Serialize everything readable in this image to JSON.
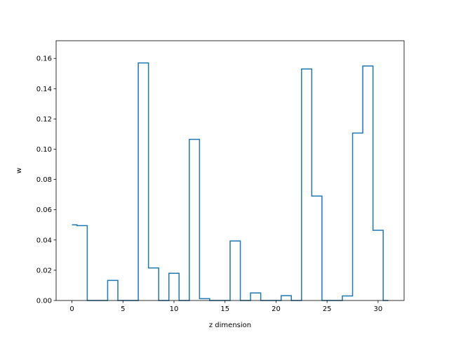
{
  "chart_data": {
    "type": "line",
    "drawstyle": "steps-mid",
    "title": "",
    "xlabel": "z dimension",
    "ylabel": "w",
    "xlim": [
      -1.55,
      32.55
    ],
    "ylim": [
      0,
      0.1717
    ],
    "xticks": [
      0,
      5,
      10,
      15,
      20,
      25,
      30
    ],
    "xtick_labels": [
      "0",
      "5",
      "10",
      "15",
      "20",
      "25",
      "30"
    ],
    "yticks": [
      0.0,
      0.02,
      0.04,
      0.06,
      0.08,
      0.1,
      0.12,
      0.14,
      0.16
    ],
    "ytick_labels": [
      "0.00",
      "0.02",
      "0.04",
      "0.06",
      "0.08",
      "0.10",
      "0.12",
      "0.14",
      "0.16"
    ],
    "grid": false,
    "legend": false,
    "series": [
      {
        "color": "#1f77b4",
        "x": [
          0,
          1,
          2,
          3,
          4,
          5,
          6,
          7,
          8,
          9,
          10,
          11,
          12,
          13,
          14,
          15,
          16,
          17,
          18,
          19,
          20,
          21,
          22,
          23,
          24,
          25,
          26,
          27,
          28,
          29,
          30,
          31
        ],
        "values": [
          0.05,
          0.0495,
          0.0,
          0.0,
          0.0133,
          0.0,
          0.0,
          0.157,
          0.0215,
          0.0,
          0.018,
          0.0,
          0.1065,
          0.0012,
          0.0,
          0.0,
          0.0393,
          0.0,
          0.005,
          0.0,
          0.0,
          0.0032,
          0.0,
          0.153,
          0.069,
          0.0,
          0.0,
          0.003,
          0.1107,
          0.155,
          0.0464,
          0.0
        ]
      }
    ]
  }
}
